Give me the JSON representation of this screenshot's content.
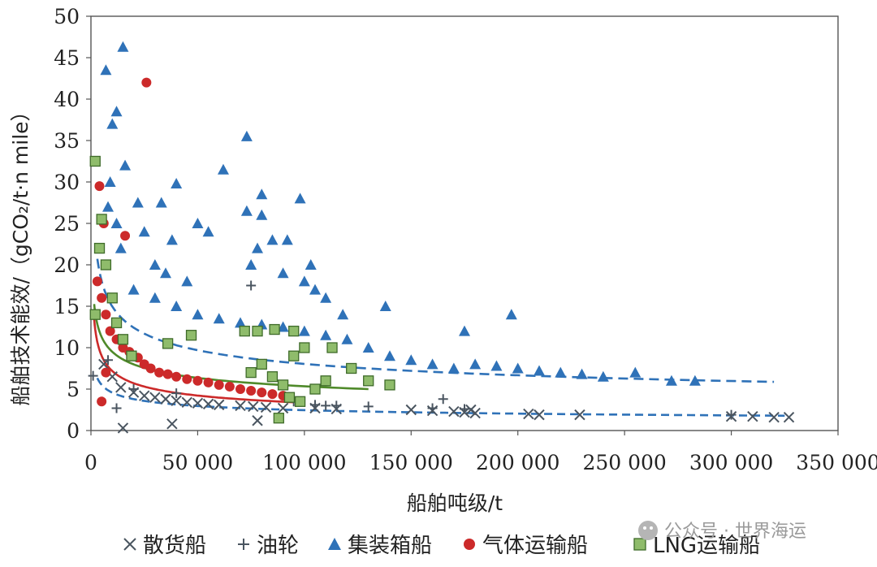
{
  "watermark": "公众号 · 世界海运",
  "chart_data": {
    "type": "scatter",
    "title": "",
    "xlabel": "船舶吨级/t",
    "ylabel": "船舶技术能效/（gCO₂/t·n mile）",
    "xlim": [
      0,
      350000
    ],
    "ylim": [
      0,
      50
    ],
    "x_ticks": [
      "0",
      "50 000",
      "100 000",
      "150 000",
      "200 000",
      "250 000",
      "300 000",
      "350 000"
    ],
    "y_ticks": [
      "0",
      "5",
      "10",
      "15",
      "20",
      "25",
      "30",
      "35",
      "40",
      "45",
      "50"
    ],
    "grid": false,
    "legend_position": "bottom",
    "series": [
      {
        "name": "散货船",
        "marker": "x",
        "color": "#4a5560",
        "points": [
          [
            15000,
            0.3
          ],
          [
            38000,
            0.8
          ],
          [
            78000,
            1.2
          ],
          [
            229000,
            1.9
          ],
          [
            327000,
            1.6
          ],
          [
            6000,
            8
          ],
          [
            10000,
            6.5
          ],
          [
            14000,
            5.2
          ],
          [
            20000,
            4.6
          ],
          [
            25000,
            4.2
          ],
          [
            30000,
            4
          ],
          [
            35000,
            3.8
          ],
          [
            40000,
            3.6
          ],
          [
            45000,
            3.4
          ],
          [
            50000,
            3.3
          ],
          [
            55000,
            3.2
          ],
          [
            60000,
            3.1
          ],
          [
            70000,
            3
          ],
          [
            76000,
            2.9
          ],
          [
            82000,
            2.8
          ],
          [
            90000,
            2.7
          ],
          [
            105000,
            2.7
          ],
          [
            115000,
            2.6
          ],
          [
            150000,
            2.5
          ],
          [
            160000,
            2.4
          ],
          [
            170000,
            2.3
          ],
          [
            175000,
            2.2
          ],
          [
            178000,
            2.5
          ],
          [
            180000,
            2.1
          ],
          [
            205000,
            2
          ],
          [
            210000,
            1.9
          ],
          [
            300000,
            1.7
          ],
          [
            310000,
            1.7
          ],
          [
            320000,
            1.6
          ]
        ]
      },
      {
        "name": "油轮",
        "marker": "+",
        "color": "#4a5560",
        "points": [
          [
            1000,
            6.6
          ],
          [
            8000,
            8.5
          ],
          [
            12000,
            2.7
          ],
          [
            20000,
            5
          ],
          [
            40000,
            4.5
          ],
          [
            75000,
            17.5
          ],
          [
            95000,
            3.5
          ],
          [
            105000,
            3.1
          ],
          [
            110000,
            3
          ],
          [
            115000,
            3
          ],
          [
            130000,
            2.9
          ],
          [
            160000,
            2.7
          ],
          [
            165000,
            3.8
          ],
          [
            175000,
            2.6
          ],
          [
            300000,
            1.9
          ]
        ]
      },
      {
        "name": "集装箱船",
        "marker": "triangle",
        "color": "#2f72b8",
        "points": [
          [
            7000,
            43.5
          ],
          [
            10000,
            37
          ],
          [
            12000,
            38.5
          ],
          [
            15000,
            46.3
          ],
          [
            16000,
            32
          ],
          [
            9000,
            30
          ],
          [
            8000,
            27
          ],
          [
            12000,
            25
          ],
          [
            14000,
            22
          ],
          [
            22000,
            27.5
          ],
          [
            33000,
            27.5
          ],
          [
            40000,
            29.8
          ],
          [
            25000,
            24
          ],
          [
            30000,
            20
          ],
          [
            35000,
            19
          ],
          [
            38000,
            23
          ],
          [
            45000,
            18
          ],
          [
            50000,
            25
          ],
          [
            55000,
            24
          ],
          [
            62000,
            31.5
          ],
          [
            73000,
            35.5
          ],
          [
            73000,
            26.5
          ],
          [
            80000,
            28.5
          ],
          [
            80000,
            26
          ],
          [
            85000,
            23
          ],
          [
            78000,
            22
          ],
          [
            75000,
            20
          ],
          [
            90000,
            19
          ],
          [
            92000,
            23
          ],
          [
            98000,
            28
          ],
          [
            100000,
            18
          ],
          [
            103000,
            20
          ],
          [
            105000,
            17
          ],
          [
            110000,
            16
          ],
          [
            118000,
            14
          ],
          [
            138000,
            15
          ],
          [
            175000,
            12
          ],
          [
            197000,
            14
          ],
          [
            20000,
            17
          ],
          [
            30000,
            16
          ],
          [
            40000,
            15
          ],
          [
            50000,
            14
          ],
          [
            60000,
            13.5
          ],
          [
            70000,
            13
          ],
          [
            80000,
            12.8
          ],
          [
            90000,
            12.5
          ],
          [
            100000,
            12
          ],
          [
            110000,
            11.5
          ],
          [
            120000,
            11
          ],
          [
            130000,
            10
          ],
          [
            140000,
            9
          ],
          [
            150000,
            8.5
          ],
          [
            160000,
            8
          ],
          [
            170000,
            7.5
          ],
          [
            180000,
            8
          ],
          [
            190000,
            7.8
          ],
          [
            200000,
            7.5
          ],
          [
            210000,
            7.2
          ],
          [
            220000,
            7
          ],
          [
            230000,
            6.8
          ],
          [
            240000,
            6.5
          ],
          [
            255000,
            7
          ],
          [
            272000,
            6
          ],
          [
            283000,
            6
          ]
        ]
      },
      {
        "name": "气体运输船",
        "marker": "circle",
        "color": "#cc2a2a",
        "points": [
          [
            4000,
            29.5
          ],
          [
            6000,
            25
          ],
          [
            26000,
            42
          ],
          [
            16000,
            23.5
          ],
          [
            5000,
            3.5
          ],
          [
            7000,
            7
          ],
          [
            3000,
            18
          ],
          [
            5000,
            16
          ],
          [
            7000,
            14
          ],
          [
            9000,
            12
          ],
          [
            12000,
            11
          ],
          [
            15000,
            10
          ],
          [
            18000,
            9.5
          ],
          [
            22000,
            8.8
          ],
          [
            25000,
            8
          ],
          [
            28000,
            7.5
          ],
          [
            32000,
            7
          ],
          [
            36000,
            6.8
          ],
          [
            40000,
            6.5
          ],
          [
            45000,
            6.2
          ],
          [
            50000,
            6
          ],
          [
            55000,
            5.8
          ],
          [
            60000,
            5.5
          ],
          [
            65000,
            5.3
          ],
          [
            70000,
            5
          ],
          [
            75000,
            4.8
          ],
          [
            80000,
            4.6
          ],
          [
            85000,
            4.4
          ],
          [
            90000,
            4.2
          ]
        ]
      },
      {
        "name": "LNG运输船",
        "marker": "square",
        "color": "#8fbc6b",
        "points": [
          [
            2000,
            32.5
          ],
          [
            5000,
            25.5
          ],
          [
            2000,
            14
          ],
          [
            4000,
            22
          ],
          [
            7000,
            20
          ],
          [
            10000,
            16
          ],
          [
            12000,
            13
          ],
          [
            15000,
            11
          ],
          [
            19000,
            9
          ],
          [
            36000,
            10.5
          ],
          [
            47000,
            11.5
          ],
          [
            72000,
            12
          ],
          [
            78000,
            12
          ],
          [
            86000,
            12.2
          ],
          [
            95000,
            12
          ],
          [
            95000,
            9
          ],
          [
            100000,
            10
          ],
          [
            113000,
            10
          ],
          [
            122000,
            7.5
          ],
          [
            130000,
            6
          ],
          [
            140000,
            5.5
          ],
          [
            75000,
            7
          ],
          [
            80000,
            8
          ],
          [
            85000,
            6.5
          ],
          [
            90000,
            5.5
          ],
          [
            93000,
            4
          ],
          [
            98000,
            3.5
          ],
          [
            105000,
            5
          ],
          [
            110000,
            6
          ],
          [
            88000,
            1.5
          ]
        ]
      }
    ],
    "trend_lines": [
      {
        "name": "集装箱船",
        "color": "#2f72b8",
        "dash": "12,7",
        "a": 180,
        "b": 0.27,
        "x_range": [
          3000,
          320000
        ]
      },
      {
        "name": "散货船",
        "color": "#2f72b8",
        "dash": "10,6",
        "a": 55,
        "b": 0.27,
        "x_range": [
          3000,
          325000
        ]
      },
      {
        "name": "LNG运输船",
        "color": "#4f8a2a",
        "dash": "",
        "a": 95,
        "b": 0.25,
        "x_range": [
          1500,
          130000
        ]
      },
      {
        "name": "气体运输船",
        "color": "#cc2a2a",
        "dash": "",
        "a": 150,
        "b": 0.33,
        "x_range": [
          1500,
          95000
        ]
      }
    ]
  }
}
